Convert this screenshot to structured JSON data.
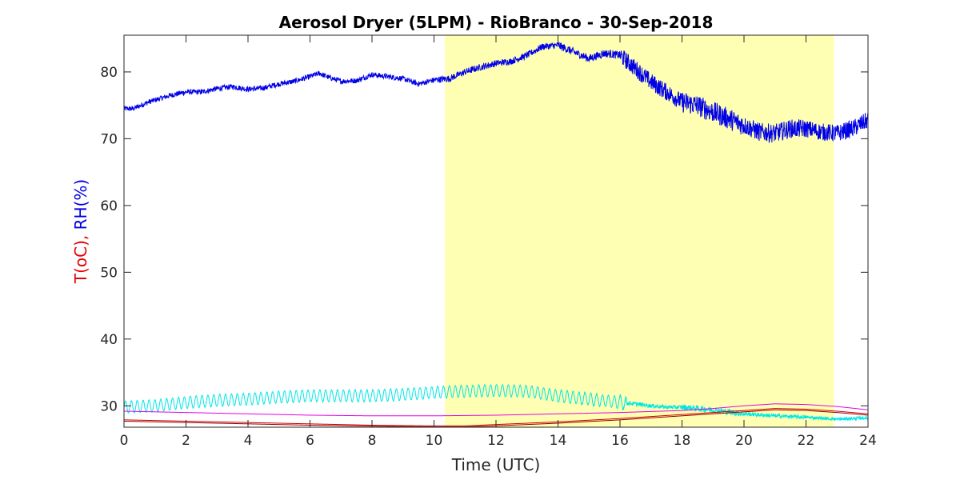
{
  "chart_data": {
    "type": "line",
    "title": "Aerosol Dryer (5LPM) - RioBranco - 30-Sep-2018",
    "xlabel": "Time (UTC)",
    "ylabel_parts": [
      {
        "text": "T(oC), ",
        "color": "#e60000"
      },
      {
        "text": "RH(%)",
        "color": "#0000e6"
      }
    ],
    "xlim": [
      0,
      24
    ],
    "ylim": [
      26.8,
      85.5
    ],
    "xticks": [
      0,
      2,
      4,
      6,
      8,
      10,
      12,
      14,
      16,
      18,
      20,
      22,
      24
    ],
    "yticks": [
      30,
      40,
      50,
      60,
      70,
      80
    ],
    "grid": false,
    "legend": "none",
    "shaded_region": {
      "x_start": 10.35,
      "x_end": 22.9,
      "color": "#ffffb3"
    },
    "series": [
      {
        "color": "#0000e6",
        "noise": [
          0.4,
          0.4,
          0.4,
          0.4,
          0.4,
          0.5,
          0.5,
          0.6,
          1.3,
          1.6,
          1.4,
          1.3,
          1.3
        ],
        "points": [
          [
            0,
            74.5
          ],
          [
            0.3,
            74.5
          ],
          [
            0.8,
            75.5
          ],
          [
            1.5,
            76.5
          ],
          [
            2,
            77
          ],
          [
            2.5,
            77
          ],
          [
            3,
            77.5
          ],
          [
            3.5,
            77.8
          ],
          [
            4,
            77.4
          ],
          [
            4.5,
            77.6
          ],
          [
            5,
            78.2
          ],
          [
            5.5,
            78.6
          ],
          [
            6,
            79.3
          ],
          [
            6.3,
            79.8
          ],
          [
            6.6,
            79.2
          ],
          [
            7,
            78.6
          ],
          [
            7.5,
            78.7
          ],
          [
            8,
            79.6
          ],
          [
            8.5,
            79.3
          ],
          [
            9,
            79
          ],
          [
            9.5,
            78.2
          ],
          [
            10,
            78.8
          ],
          [
            10.5,
            79
          ],
          [
            11,
            80
          ],
          [
            11.5,
            80.7
          ],
          [
            12,
            81.3
          ],
          [
            12.5,
            81.6
          ],
          [
            13,
            82.5
          ],
          [
            13.5,
            83.8
          ],
          [
            14,
            84
          ],
          [
            14.5,
            83
          ],
          [
            15,
            82
          ],
          [
            15.5,
            82.8
          ],
          [
            16,
            82.5
          ],
          [
            16.5,
            80.5
          ],
          [
            17,
            78.5
          ],
          [
            17.5,
            77
          ],
          [
            18,
            75.5
          ],
          [
            18.5,
            75
          ],
          [
            19,
            74
          ],
          [
            19.5,
            73
          ],
          [
            20,
            72
          ],
          [
            20.5,
            71
          ],
          [
            21,
            70.8
          ],
          [
            21.5,
            71.5
          ],
          [
            22,
            71.5
          ],
          [
            22.5,
            71
          ],
          [
            23,
            70.8
          ],
          [
            23.5,
            71.5
          ],
          [
            24,
            72.8
          ]
        ]
      },
      {
        "color": "#00e6e6",
        "oscillation": {
          "amplitude": 0.9,
          "period_h": 0.19,
          "x_start": 0,
          "x_end": 16.2
        },
        "noise": [
          0.05,
          0.05,
          0.05,
          0.05,
          0.05,
          0.05,
          0.05,
          0.1,
          0.3,
          0.45,
          0.3,
          0.25,
          0.2
        ],
        "points": [
          [
            0,
            29.8
          ],
          [
            1,
            30
          ],
          [
            2,
            30.5
          ],
          [
            3,
            30.8
          ],
          [
            4,
            31
          ],
          [
            5,
            31.3
          ],
          [
            6,
            31.5
          ],
          [
            7,
            31.5
          ],
          [
            8,
            31.5
          ],
          [
            9,
            31.7
          ],
          [
            10,
            32
          ],
          [
            11,
            32.2
          ],
          [
            12,
            32.3
          ],
          [
            13,
            32.2
          ],
          [
            14,
            31.5
          ],
          [
            15,
            31
          ],
          [
            16,
            30.5
          ],
          [
            16.5,
            30.3
          ],
          [
            17,
            30
          ],
          [
            17.5,
            29.8
          ],
          [
            18,
            29.8
          ],
          [
            19,
            29.4
          ],
          [
            20,
            28.8
          ],
          [
            21,
            28.5
          ],
          [
            22,
            28.3
          ],
          [
            23,
            28
          ],
          [
            24,
            28.2
          ]
        ]
      },
      {
        "color": "#e600e6",
        "points": [
          [
            0,
            29.2
          ],
          [
            2,
            29
          ],
          [
            4,
            28.8
          ],
          [
            6,
            28.6
          ],
          [
            8,
            28.5
          ],
          [
            10,
            28.5
          ],
          [
            12,
            28.6
          ],
          [
            14,
            28.8
          ],
          [
            16,
            29
          ],
          [
            18,
            29.3
          ],
          [
            19,
            29.6
          ],
          [
            20,
            30
          ],
          [
            21,
            30.3
          ],
          [
            22,
            30.2
          ],
          [
            23,
            29.9
          ],
          [
            24,
            29.4
          ]
        ]
      },
      {
        "color": "#cc0000",
        "points": [
          [
            0,
            27.9
          ],
          [
            2,
            27.7
          ],
          [
            4,
            27.5
          ],
          [
            6,
            27.3
          ],
          [
            8,
            27.1
          ],
          [
            10,
            27
          ],
          [
            11,
            27
          ],
          [
            12,
            27.2
          ],
          [
            14,
            27.6
          ],
          [
            16,
            28.1
          ],
          [
            18,
            28.7
          ],
          [
            20,
            29.3
          ],
          [
            21,
            29.6
          ],
          [
            22,
            29.5
          ],
          [
            23,
            29.2
          ],
          [
            24,
            28.8
          ]
        ]
      },
      {
        "color": "#990000",
        "points": [
          [
            0,
            27.7
          ],
          [
            2,
            27.5
          ],
          [
            4,
            27.3
          ],
          [
            6,
            27.1
          ],
          [
            8,
            26.95
          ],
          [
            10,
            26.85
          ],
          [
            11,
            26.85
          ],
          [
            12,
            27
          ],
          [
            14,
            27.4
          ],
          [
            16,
            27.9
          ],
          [
            18,
            28.5
          ],
          [
            20,
            29.1
          ],
          [
            21,
            29.4
          ],
          [
            22,
            29.3
          ],
          [
            23,
            29
          ],
          [
            24,
            28.6
          ]
        ]
      }
    ]
  }
}
